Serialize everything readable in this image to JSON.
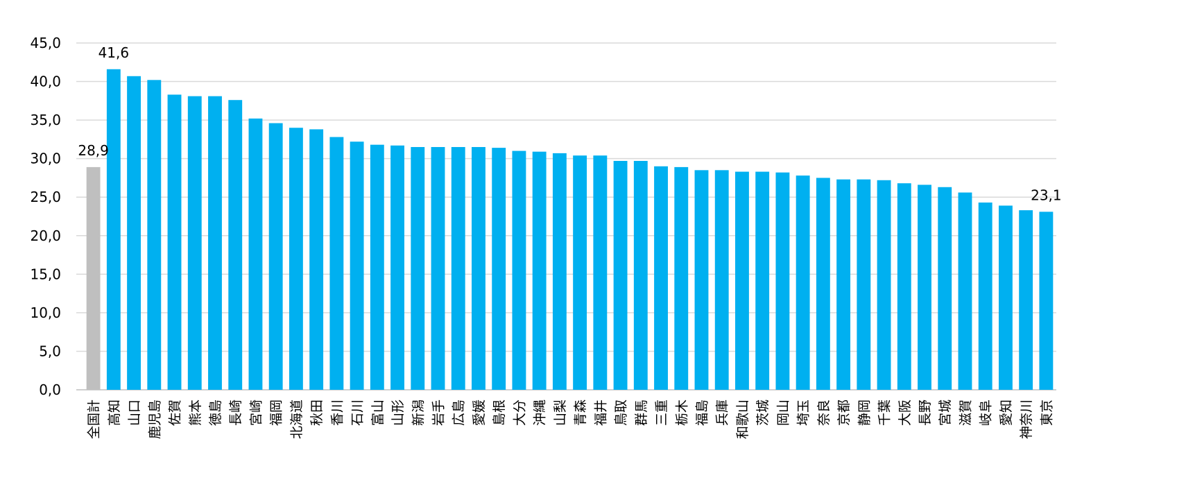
{
  "chart_data": {
    "type": "bar",
    "categories": [
      "全国計",
      "高知",
      "山口",
      "鹿児島",
      "佐賀",
      "熊本",
      "徳島",
      "長崎",
      "宮崎",
      "福岡",
      "北海道",
      "秋田",
      "香川",
      "石川",
      "富山",
      "山形",
      "新潟",
      "岩手",
      "広島",
      "愛媛",
      "島根",
      "大分",
      "沖縄",
      "山梨",
      "青森",
      "福井",
      "鳥取",
      "群馬",
      "三重",
      "栃木",
      "福島",
      "兵庫",
      "和歌山",
      "茨城",
      "岡山",
      "埼玉",
      "奈良",
      "京都",
      "静岡",
      "千葉",
      "大阪",
      "長野",
      "宮城",
      "滋賀",
      "岐阜",
      "愛知",
      "神奈川",
      "東京"
    ],
    "values": [
      28.9,
      41.6,
      40.7,
      40.2,
      38.3,
      38.1,
      38.1,
      37.6,
      35.2,
      34.6,
      34.0,
      33.8,
      32.8,
      32.2,
      31.8,
      31.7,
      31.5,
      31.5,
      31.5,
      31.5,
      31.4,
      31.0,
      30.9,
      30.7,
      30.4,
      30.4,
      29.7,
      29.7,
      29.0,
      28.9,
      28.5,
      28.5,
      28.3,
      28.3,
      28.2,
      27.8,
      27.5,
      27.3,
      27.3,
      27.2,
      26.8,
      26.6,
      26.3,
      25.6,
      24.3,
      23.9,
      23.3,
      23.1
    ],
    "highlight_index": 0,
    "colors": {
      "bar": "#00b0f0",
      "highlight": "#bfbfbf",
      "grid": "#d9d9d9"
    },
    "ylim": [
      0,
      45
    ],
    "ytick_step": 5,
    "yticks": [
      "0,0",
      "5,0",
      "10,0",
      "15,0",
      "20,0",
      "25,0",
      "30,0",
      "35,0",
      "40,0",
      "45,0"
    ],
    "data_labels": [
      {
        "index": 0,
        "text": "28,9"
      },
      {
        "index": 1,
        "text": "41,6"
      },
      {
        "index": 47,
        "text": "23,1"
      }
    ],
    "grid": true,
    "legend": "none",
    "title": "",
    "xlabel": "",
    "ylabel": ""
  }
}
